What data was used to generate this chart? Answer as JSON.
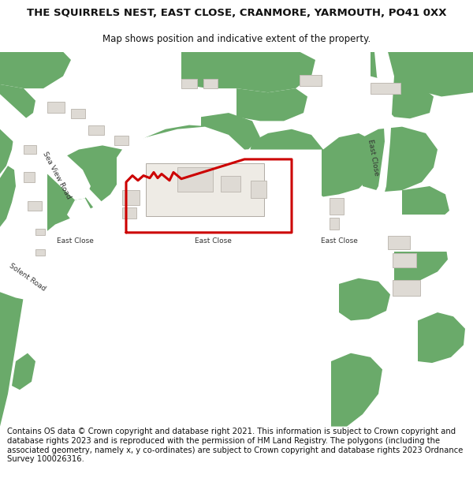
{
  "title_line1": "THE SQUIRRELS NEST, EAST CLOSE, CRANMORE, YARMOUTH, PO41 0XX",
  "title_line2": "Map shows position and indicative extent of the property.",
  "footer_text": "Contains OS data © Crown copyright and database right 2021. This information is subject to Crown copyright and database rights 2023 and is reproduced with the permission of HM Land Registry. The polygons (including the associated geometry, namely x, y co-ordinates) are subject to Crown copyright and database rights 2023 Ordnance Survey 100026316.",
  "bg_color": "#ffffff",
  "map_bg": "#f5f3ef",
  "green_color": "#6aaa6a",
  "road_color": "#ffffff",
  "building_color": "#dedad4",
  "building_edge": "#c0bbb4",
  "plot_outline_color": "#cc0000",
  "title_fontsize": 9.5,
  "subtitle_fontsize": 8.5,
  "footer_fontsize": 7.2,
  "road_label_fontsize": 6.5
}
